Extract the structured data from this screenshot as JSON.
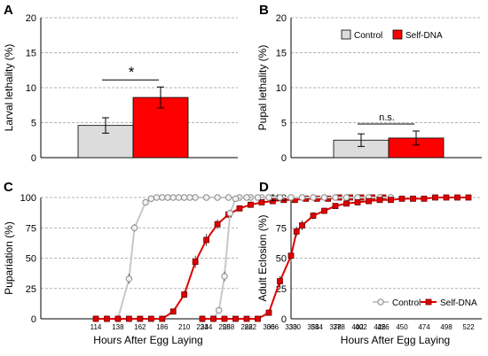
{
  "chart_data": [
    {
      "panel": "A",
      "type": "bar",
      "ylabel": "Larval lethality (%)",
      "ylim": [
        0,
        20
      ],
      "yticks": [
        0,
        5,
        10,
        15,
        20
      ],
      "grid": true,
      "categories": [
        "Control",
        "Self-DNA"
      ],
      "values": [
        4.6,
        8.6
      ],
      "errors": [
        1.1,
        1.5
      ],
      "colors": [
        "#dcdcdc",
        "#ff0000"
      ],
      "significance": "*"
    },
    {
      "panel": "B",
      "type": "bar",
      "ylabel": "Pupal lethality (%)",
      "ylim": [
        0,
        20
      ],
      "yticks": [
        0,
        5,
        10,
        15,
        20
      ],
      "grid": true,
      "categories": [
        "Control",
        "Self-DNA"
      ],
      "values": [
        2.5,
        2.8
      ],
      "errors": [
        0.9,
        1.0
      ],
      "colors": [
        "#dcdcdc",
        "#ff0000"
      ],
      "significance": "n.s.",
      "legend": [
        "Control",
        "Self-DNA"
      ]
    },
    {
      "panel": "C",
      "type": "line",
      "ylabel": "Pupariation (%)",
      "xlabel": "Hours After Egg Laying",
      "ylim": [
        0,
        100
      ],
      "yticks": [
        0,
        25,
        50,
        75,
        100
      ],
      "xticks": [
        114,
        138,
        162,
        186,
        210,
        234,
        258,
        282,
        306,
        330,
        354,
        378,
        402,
        426
      ],
      "grid": true,
      "series": [
        {
          "name": "Control",
          "color": "#c8c8c8",
          "marker": "circle",
          "x": [
            114,
            126,
            138,
            150,
            156,
            168,
            174,
            180,
            186,
            192,
            198,
            204,
            210,
            216,
            222,
            234,
            246,
            258,
            270,
            282,
            294,
            306
          ],
          "y": [
            0,
            0,
            0,
            33,
            75,
            96,
            99,
            100,
            100,
            100,
            100,
            100,
            100,
            100,
            100,
            100,
            100,
            100,
            100,
            100,
            100,
            100
          ],
          "err": [
            0,
            0,
            0,
            4,
            3,
            2,
            1,
            0,
            0,
            0,
            0,
            0,
            0,
            0,
            0,
            0,
            0,
            0,
            0,
            0,
            0,
            0
          ]
        },
        {
          "name": "Self-DNA",
          "color": "#e00000",
          "marker": "square",
          "x": [
            114,
            126,
            138,
            150,
            162,
            174,
            186,
            198,
            210,
            222,
            234,
            246,
            258,
            270,
            282,
            294,
            306,
            318,
            330,
            342,
            354,
            366,
            378,
            390,
            402,
            414,
            426
          ],
          "y": [
            0,
            0,
            0,
            0,
            0,
            0,
            0,
            6,
            20,
            47,
            65,
            78,
            86,
            91,
            94,
            96,
            97,
            98,
            98,
            99,
            99,
            99,
            100,
            100,
            100,
            100,
            100
          ],
          "err": [
            0,
            0,
            0,
            0,
            0,
            0,
            0,
            1,
            3,
            5,
            5,
            4,
            3,
            2,
            1,
            1,
            1,
            1,
            1,
            0,
            0,
            0,
            0,
            0,
            0,
            0,
            0
          ]
        }
      ]
    },
    {
      "panel": "D",
      "type": "line",
      "ylabel": "Adult Eclosion (%)",
      "xlabel": "Hours After Egg Laying",
      "ylim": [
        0,
        100
      ],
      "yticks": [
        0,
        25,
        50,
        75,
        100
      ],
      "xticks": [
        234,
        258,
        282,
        306,
        330,
        354,
        378,
        402,
        426,
        450,
        474,
        498,
        522
      ],
      "grid": true,
      "legend": [
        "Control",
        "Self-DNA"
      ],
      "series": [
        {
          "name": "Control",
          "color": "#c8c8c8",
          "marker": "circle",
          "x": [
            234,
            246,
            252,
            258,
            264,
            270,
            282,
            294,
            306,
            318,
            330,
            342,
            354,
            366,
            378,
            390,
            402,
            414,
            426,
            438
          ],
          "y": [
            0,
            0,
            7,
            35,
            87,
            99,
            100,
            100,
            100,
            100,
            100,
            100,
            100,
            100,
            100,
            100,
            100,
            100,
            100,
            100
          ],
          "err": [
            0,
            0,
            2,
            4,
            3,
            1,
            0,
            0,
            0,
            0,
            0,
            0,
            0,
            0,
            0,
            0,
            0,
            0,
            0,
            0
          ]
        },
        {
          "name": "Self-DNA",
          "color": "#e00000",
          "marker": "square",
          "x": [
            234,
            246,
            258,
            270,
            282,
            294,
            306,
            318,
            330,
            336,
            342,
            354,
            366,
            378,
            390,
            402,
            414,
            426,
            438,
            450,
            462,
            474,
            486,
            498,
            510,
            522
          ],
          "y": [
            0,
            0,
            0,
            0,
            0,
            0,
            5,
            31,
            52,
            72,
            77,
            85,
            89,
            93,
            95,
            96,
            97,
            98,
            98,
            99,
            99,
            99,
            100,
            100,
            100,
            100
          ],
          "err": [
            0,
            0,
            0,
            0,
            0,
            0,
            1,
            4,
            5,
            4,
            4,
            3,
            2,
            2,
            1,
            1,
            1,
            1,
            0,
            0,
            0,
            0,
            0,
            0,
            0,
            0
          ]
        }
      ]
    }
  ]
}
